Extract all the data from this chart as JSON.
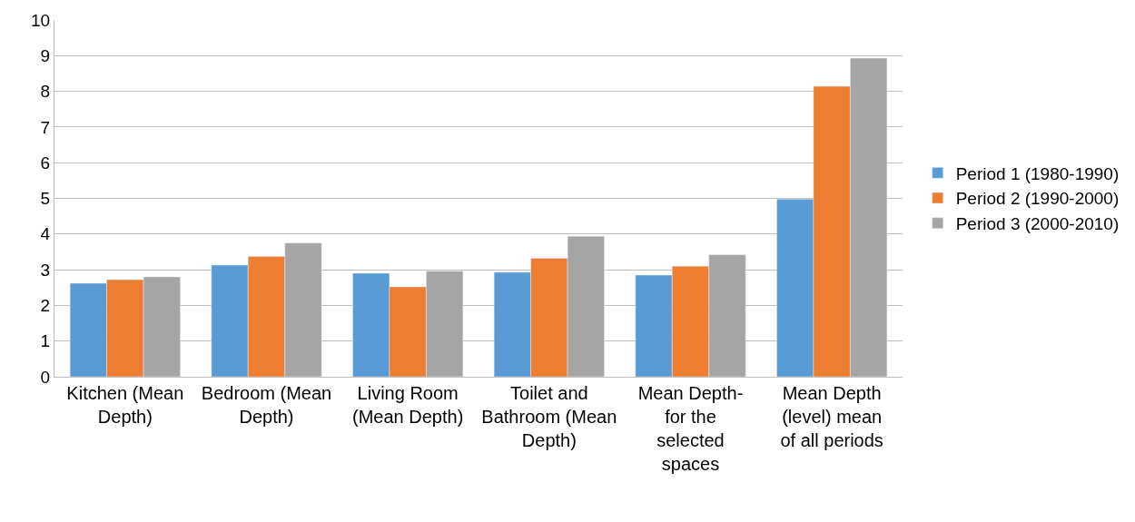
{
  "chart_data": {
    "type": "bar",
    "categories": [
      "Kitchen (Mean Depth)",
      "Bedroom (Mean Depth)",
      "Living Room (Mean Depth)",
      "Toilet and Bathroom (Mean Depth)",
      "Mean Depth- for the selected spaces",
      "Mean Depth (level) mean of all periods"
    ],
    "series": [
      {
        "name": "Period 1 (1980-1990)",
        "color": "#5b9bd5",
        "values": [
          2.62,
          3.13,
          2.9,
          2.93,
          2.85,
          4.98
        ]
      },
      {
        "name": "Period 2 (1990-2000)",
        "color": "#ed7d31",
        "values": [
          2.72,
          3.37,
          2.52,
          3.32,
          3.1,
          8.14
        ]
      },
      {
        "name": "Period 3 (2000-2010)",
        "color": "#a5a5a5",
        "values": [
          2.8,
          3.75,
          2.96,
          3.94,
          3.42,
          8.93
        ]
      }
    ],
    "ylim": [
      0,
      10
    ],
    "yticks": [
      0,
      1,
      2,
      3,
      4,
      5,
      6,
      7,
      8,
      9,
      10
    ],
    "grid": "y",
    "legend": "right"
  }
}
